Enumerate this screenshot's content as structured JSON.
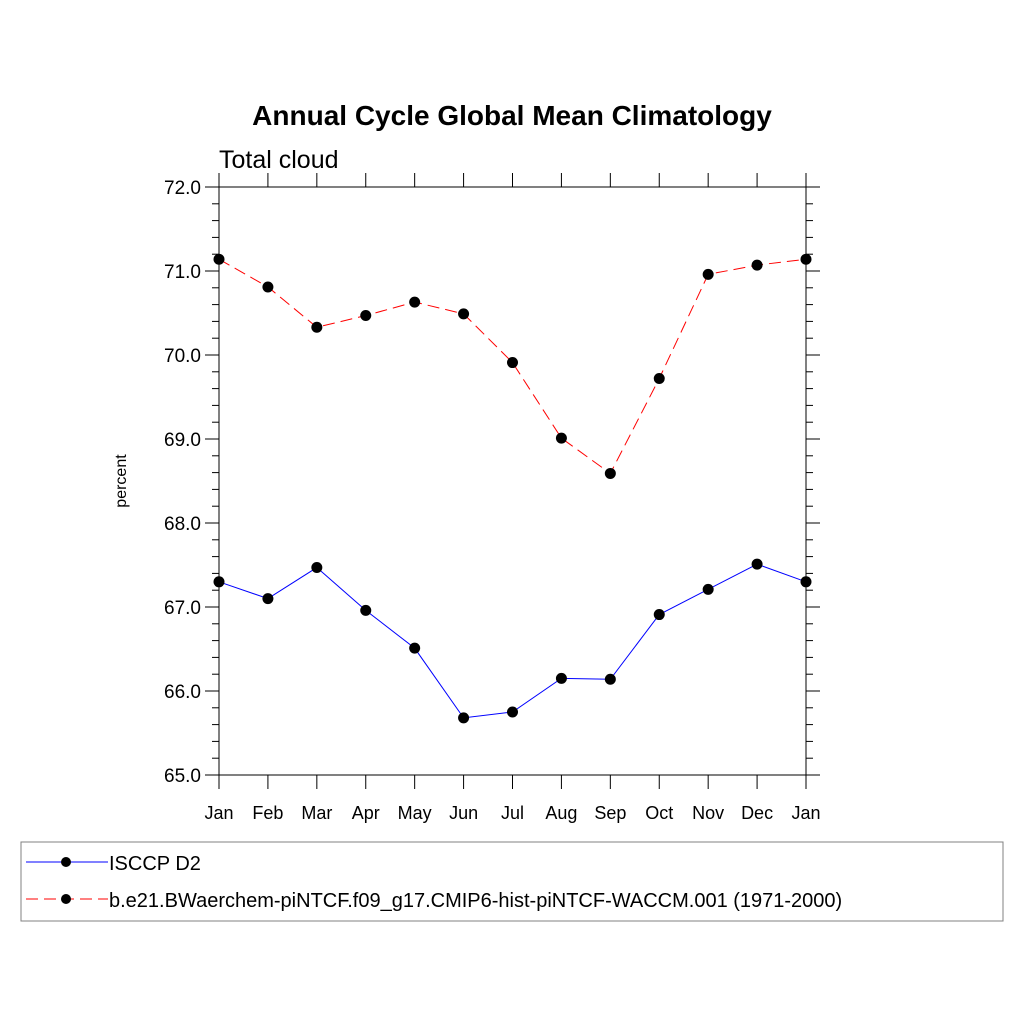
{
  "chart_data": {
    "type": "line",
    "title": "Annual Cycle Global Mean Climatology",
    "subtitle": "Total cloud",
    "xlabel": "",
    "ylabel": "percent",
    "categories": [
      "Jan",
      "Feb",
      "Mar",
      "Apr",
      "May",
      "Jun",
      "Jul",
      "Aug",
      "Sep",
      "Oct",
      "Nov",
      "Dec",
      "Jan"
    ],
    "ylim": [
      65.0,
      72.0
    ],
    "yticks": [
      65.0,
      66.0,
      67.0,
      68.0,
      69.0,
      70.0,
      71.0,
      72.0
    ],
    "ytick_labels": [
      "65.0",
      "66.0",
      "67.0",
      "68.0",
      "69.0",
      "70.0",
      "71.0",
      "72.0"
    ],
    "grid": false,
    "legend_position": "bottom",
    "series": [
      {
        "name": "ISCCP D2",
        "color": "#0000ff",
        "dash": "solid",
        "marker": "filled-circle",
        "values": [
          67.3,
          67.1,
          67.47,
          66.96,
          66.51,
          65.68,
          65.75,
          66.15,
          66.14,
          66.91,
          67.21,
          67.51,
          67.3
        ]
      },
      {
        "name": "b.e21.BWaerchem-piNTCF.f09_g17.CMIP6-hist-piNTCF-WACCM.001 (1971-2000)",
        "color": "#ff0000",
        "dash": "dashed",
        "marker": "filled-circle",
        "values": [
          71.14,
          70.81,
          70.33,
          70.47,
          70.63,
          70.49,
          69.91,
          69.01,
          68.59,
          69.72,
          70.96,
          71.07,
          71.14
        ]
      }
    ]
  }
}
